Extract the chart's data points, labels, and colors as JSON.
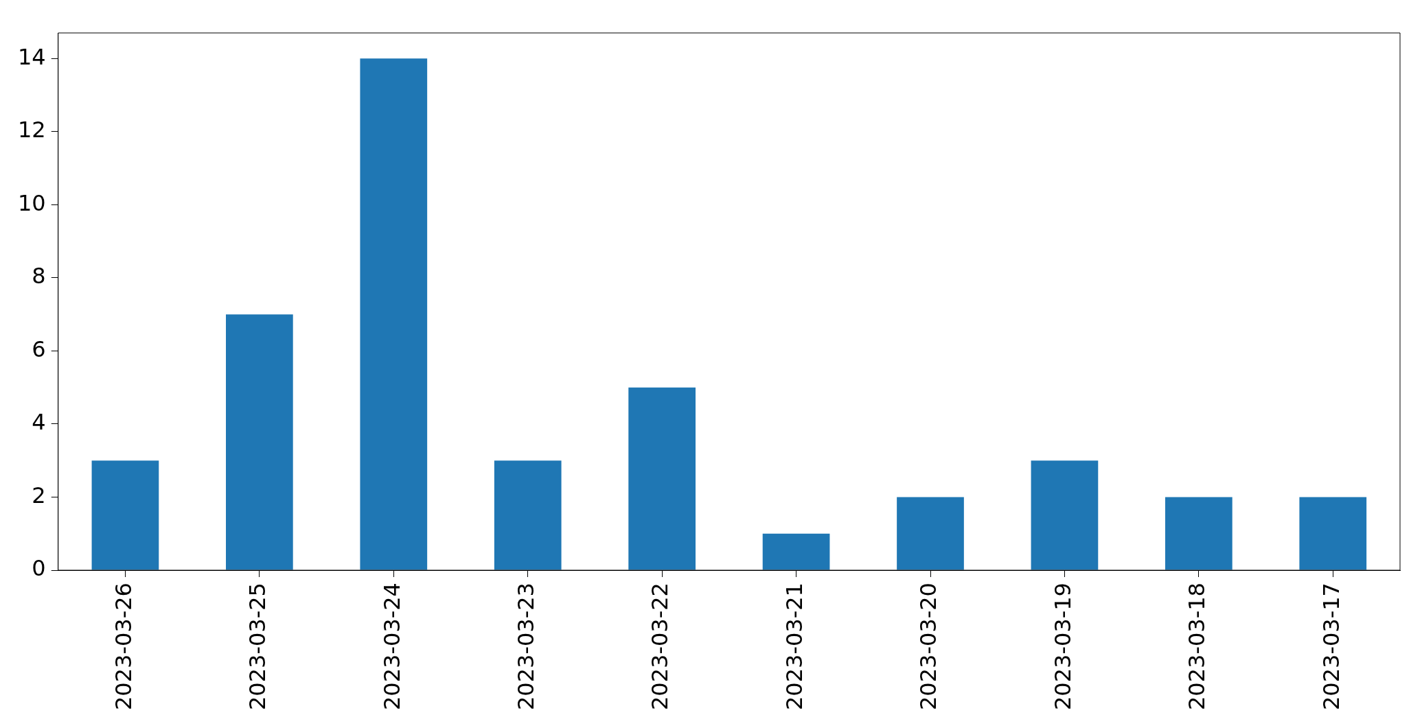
{
  "chart_data": {
    "type": "bar",
    "categories": [
      "2023-03-26",
      "2023-03-25",
      "2023-03-24",
      "2023-03-23",
      "2023-03-22",
      "2023-03-21",
      "2023-03-20",
      "2023-03-19",
      "2023-03-18",
      "2023-03-17"
    ],
    "values": [
      3,
      7,
      14,
      3,
      5,
      1,
      2,
      3,
      2,
      2
    ],
    "color": "#1f77b4",
    "ylim": [
      0,
      14.7
    ],
    "yticks": [
      0,
      2,
      4,
      6,
      8,
      10,
      12,
      14
    ],
    "grid": false,
    "legend": false
  }
}
